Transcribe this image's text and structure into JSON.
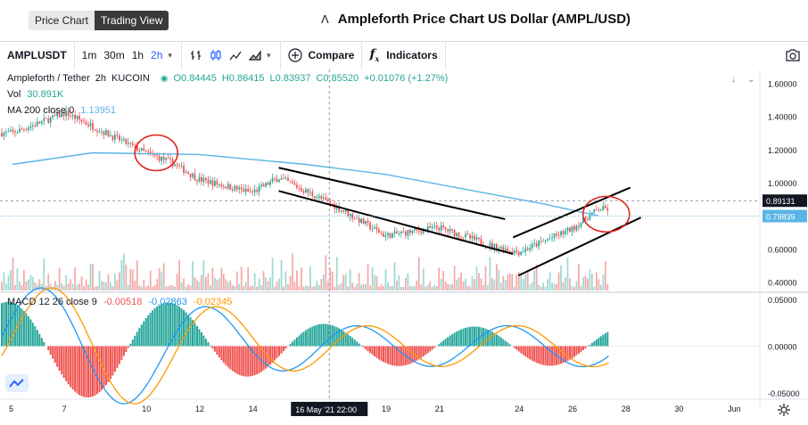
{
  "tabs": [
    {
      "label": "Price Chart",
      "active": false
    },
    {
      "label": "Trading View",
      "active": true
    }
  ],
  "page_title": "Ampleforth Price Chart US Dollar (AMPL/USD)",
  "title_mark": "Λ",
  "toolbar": {
    "symbol": "AMPLUSDT",
    "intervals": [
      "1m",
      "30m",
      "1h",
      "2h"
    ],
    "active_interval": "2h",
    "compare_label": "Compare",
    "indicators_label": "Indicators",
    "plus_glyph": "+",
    "fx_glyph": "f"
  },
  "legend": {
    "name": "Ampleforth / Tether",
    "interval": "2h",
    "exchange": "KUCOIN",
    "o": "O0.84445",
    "h": "H0.86415",
    "l": "L0.83937",
    "c": "C0.85520",
    "chg": "+0.01076 (+1.27%)",
    "vol_label": "Vol",
    "vol_value": "30.891K",
    "ma_label": "MA 200 close 0",
    "ma_value": "1.13951",
    "macd_label": "MACD 12 26 close 9",
    "macd_hist": "-0.00518",
    "macd_line": "-0.02863",
    "macd_signal": "-0.02345"
  },
  "colors": {
    "up": "#26a69a",
    "down": "#ef5350",
    "ma": "#5bb4e5",
    "macd_line": "#2196f3",
    "signal_line": "#ff9800",
    "accent": "#2962ff",
    "annotation": "#e0231a"
  },
  "price_axis": {
    "ticks": [
      "1.60000",
      "1.40000",
      "1.20000",
      "1.00000",
      "0.80000",
      "0.60000",
      "0.40000"
    ]
  },
  "price_badges": {
    "dark_value": "0.89131",
    "teal_value": "0.79839"
  },
  "macd_axis": {
    "ticks": [
      "0.05000",
      "0.00000",
      "-0.05000"
    ]
  },
  "time_axis": {
    "ticks": [
      "5",
      "7",
      "10",
      "12",
      "14",
      "19",
      "21",
      "24",
      "26",
      "28",
      "30",
      "Jun"
    ],
    "crosshair_label": "16 May '21  22:00"
  },
  "chart_data": {
    "type": "candlestick",
    "title": "Ampleforth / Tether",
    "ylim": [
      0.35,
      1.65
    ],
    "x_ticks": [
      "5",
      "7",
      "10",
      "12",
      "14",
      "16 May '21",
      "19",
      "21",
      "24",
      "26",
      "28",
      "30",
      "Jun"
    ],
    "key_prices": [
      {
        "day": 5,
        "price": 1.3
      },
      {
        "day": 7,
        "price": 1.42
      },
      {
        "day": 10,
        "price": 1.18
      },
      {
        "day": 11,
        "price": 1.12
      },
      {
        "day": 12,
        "price": 1.02
      },
      {
        "day": 14,
        "price": 0.94
      },
      {
        "day": 15,
        "price": 1.03
      },
      {
        "day": 17,
        "price": 0.87
      },
      {
        "day": 19,
        "price": 0.68
      },
      {
        "day": 21,
        "price": 0.73
      },
      {
        "day": 23,
        "price": 0.62
      },
      {
        "day": 24,
        "price": 0.58
      },
      {
        "day": 26,
        "price": 0.72
      },
      {
        "day": 27,
        "price": 0.84
      }
    ],
    "ma200": [
      {
        "day": 5,
        "price": 1.11
      },
      {
        "day": 8,
        "price": 1.18
      },
      {
        "day": 12,
        "price": 1.17
      },
      {
        "day": 16,
        "price": 1.11
      },
      {
        "day": 19,
        "price": 1.05
      },
      {
        "day": 22,
        "price": 0.96
      },
      {
        "day": 25,
        "price": 0.87
      },
      {
        "day": 27,
        "price": 0.8
      }
    ],
    "macd_range": [
      -0.055,
      0.055
    ]
  }
}
